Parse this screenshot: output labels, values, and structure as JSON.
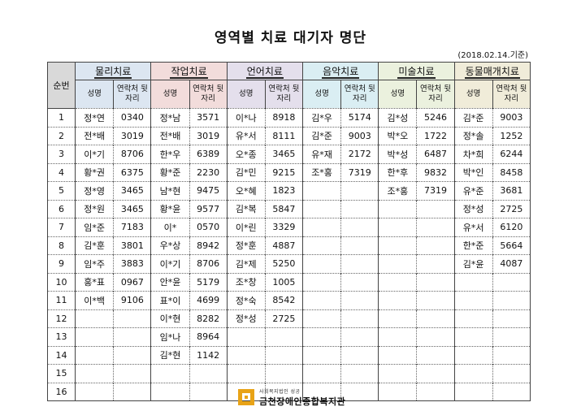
{
  "title": "영역별 치료 대기자 명단",
  "date": "(2018.02.14.기준)",
  "num_header": "순번",
  "name_header": "성명",
  "phone_header": "연락처 뒷자리",
  "categories": [
    {
      "label": "물리치료",
      "color": "#dce6f1"
    },
    {
      "label": "작업치료",
      "color": "#f2dcdb"
    },
    {
      "label": "언어치료",
      "color": "#e4dfec"
    },
    {
      "label": "음악치료",
      "color": "#daeef3"
    },
    {
      "label": "미술치료",
      "color": "#ebf1de"
    },
    {
      "label": "동물매개치료",
      "color": "#f0ecd9"
    }
  ],
  "rows": [
    {
      "num": "1",
      "cells": [
        [
          "정*연",
          "0340"
        ],
        [
          "정*남",
          "3571"
        ],
        [
          "이*나",
          "8918"
        ],
        [
          "김*우",
          "5174"
        ],
        [
          "김*성",
          "5246"
        ],
        [
          "김*준",
          "9003"
        ]
      ]
    },
    {
      "num": "2",
      "cells": [
        [
          "전*배",
          "3019"
        ],
        [
          "전*배",
          "3019"
        ],
        [
          "유*서",
          "8111"
        ],
        [
          "김*준",
          "9003"
        ],
        [
          "박*오",
          "1722"
        ],
        [
          "정*솔",
          "1252"
        ]
      ]
    },
    {
      "num": "3",
      "cells": [
        [
          "이*기",
          "8706"
        ],
        [
          "한*우",
          "6389"
        ],
        [
          "오*종",
          "3465"
        ],
        [
          "유*재",
          "2172"
        ],
        [
          "박*성",
          "6487"
        ],
        [
          "차*희",
          "6244"
        ]
      ]
    },
    {
      "num": "4",
      "cells": [
        [
          "황*권",
          "6375"
        ],
        [
          "황*준",
          "2230"
        ],
        [
          "김*민",
          "9215"
        ],
        [
          "조*홍",
          "7319"
        ],
        [
          "한*후",
          "9832"
        ],
        [
          "박*인",
          "8458"
        ]
      ]
    },
    {
      "num": "5",
      "cells": [
        [
          "정*영",
          "3465"
        ],
        [
          "남*현",
          "9475"
        ],
        [
          "오*혜",
          "1823"
        ],
        [
          "",
          ""
        ],
        [
          "조*홍",
          "7319"
        ],
        [
          "유*준",
          "3681"
        ]
      ]
    },
    {
      "num": "6",
      "cells": [
        [
          "정*원",
          "3465"
        ],
        [
          "황*윤",
          "9577"
        ],
        [
          "김*복",
          "5847"
        ],
        [
          "",
          ""
        ],
        [
          "",
          ""
        ],
        [
          "정*성",
          "2725"
        ]
      ]
    },
    {
      "num": "7",
      "cells": [
        [
          "임*준",
          "7183"
        ],
        [
          "이*",
          "0570"
        ],
        [
          "이*린",
          "3329"
        ],
        [
          "",
          ""
        ],
        [
          "",
          ""
        ],
        [
          "유*서",
          "6120"
        ]
      ]
    },
    {
      "num": "8",
      "cells": [
        [
          "김*훈",
          "3801"
        ],
        [
          "우*상",
          "8942"
        ],
        [
          "정*훈",
          "4887"
        ],
        [
          "",
          ""
        ],
        [
          "",
          ""
        ],
        [
          "한*준",
          "5664"
        ]
      ]
    },
    {
      "num": "9",
      "cells": [
        [
          "임*주",
          "3883"
        ],
        [
          "이*기",
          "8706"
        ],
        [
          "김*제",
          "5250"
        ],
        [
          "",
          ""
        ],
        [
          "",
          ""
        ],
        [
          "김*윤",
          "4087"
        ]
      ]
    },
    {
      "num": "10",
      "cells": [
        [
          "홍*표",
          "0967"
        ],
        [
          "안*윤",
          "5179"
        ],
        [
          "조*창",
          "1005"
        ],
        [
          "",
          ""
        ],
        [
          "",
          ""
        ],
        [
          "",
          ""
        ]
      ]
    },
    {
      "num": "11",
      "cells": [
        [
          "이*백",
          "9106"
        ],
        [
          "표*이",
          "4699"
        ],
        [
          "정*숙",
          "8542"
        ],
        [
          "",
          ""
        ],
        [
          "",
          ""
        ],
        [
          "",
          ""
        ]
      ]
    },
    {
      "num": "12",
      "cells": [
        [
          "",
          ""
        ],
        [
          "이*현",
          "8282"
        ],
        [
          "정*성",
          "2725"
        ],
        [
          "",
          ""
        ],
        [
          "",
          ""
        ],
        [
          "",
          ""
        ]
      ]
    },
    {
      "num": "13",
      "cells": [
        [
          "",
          ""
        ],
        [
          "임*나",
          "8964"
        ],
        [
          "",
          ""
        ],
        [
          "",
          ""
        ],
        [
          "",
          ""
        ],
        [
          "",
          ""
        ]
      ]
    },
    {
      "num": "14",
      "cells": [
        [
          "",
          ""
        ],
        [
          "김*현",
          "1142"
        ],
        [
          "",
          ""
        ],
        [
          "",
          ""
        ],
        [
          "",
          ""
        ],
        [
          "",
          ""
        ]
      ]
    },
    {
      "num": "15",
      "cells": [
        [
          "",
          ""
        ],
        [
          "",
          ""
        ],
        [
          "",
          ""
        ],
        [
          "",
          ""
        ],
        [
          "",
          ""
        ],
        [
          "",
          ""
        ]
      ]
    },
    {
      "num": "16",
      "cells": [
        [
          "",
          ""
        ],
        [
          "",
          ""
        ],
        [
          "",
          ""
        ],
        [
          "",
          ""
        ],
        [
          "",
          ""
        ],
        [
          "",
          ""
        ]
      ]
    }
  ],
  "footer": {
    "subtitle": "사회복지법인 성공",
    "org_name": "금천장애인종합복지관",
    "logo_color": "#e8a317"
  }
}
